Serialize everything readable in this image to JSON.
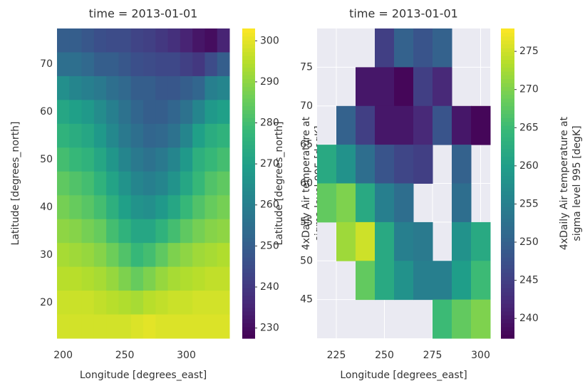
{
  "chart_data": [
    {
      "type": "heatmap",
      "title": "time = 2013-01-01",
      "x_label": "Longitude [degrees_east]",
      "y_label": "Latitude [degrees_north]",
      "x": [
        200,
        210,
        220,
        230,
        240,
        250,
        260,
        270,
        280,
        290,
        300,
        310,
        320,
        330
      ],
      "y": [
        75,
        70,
        65,
        60,
        55,
        50,
        45,
        40,
        35,
        30,
        25,
        20,
        15
      ],
      "values": [
        [
          250,
          250,
          248,
          246,
          245,
          245,
          243,
          242,
          240,
          238,
          235,
          232,
          230,
          235
        ],
        [
          255,
          255,
          253,
          250,
          250,
          248,
          246,
          245,
          244,
          244,
          242,
          240,
          245,
          250
        ],
        [
          265,
          262,
          260,
          258,
          255,
          253,
          250,
          250,
          248,
          248,
          250,
          252,
          260,
          262
        ],
        [
          272,
          270,
          268,
          264,
          260,
          256,
          252,
          250,
          250,
          252,
          256,
          262,
          268,
          270
        ],
        [
          276,
          274,
          272,
          268,
          263,
          258,
          255,
          252,
          253,
          256,
          262,
          270,
          274,
          276
        ],
        [
          280,
          278,
          276,
          272,
          267,
          262,
          258,
          256,
          258,
          262,
          268,
          275,
          278,
          280
        ],
        [
          284,
          282,
          280,
          276,
          271,
          266,
          262,
          260,
          262,
          266,
          272,
          278,
          282,
          284
        ],
        [
          287,
          285,
          283,
          280,
          275,
          270,
          266,
          265,
          268,
          272,
          278,
          282,
          285,
          287
        ],
        [
          290,
          289,
          287,
          285,
          280,
          276,
          272,
          272,
          276,
          280,
          284,
          287,
          289,
          290
        ],
        [
          293,
          292,
          291,
          289,
          286,
          282,
          278,
          280,
          284,
          288,
          290,
          292,
          293,
          294
        ],
        [
          295,
          295,
          294,
          293,
          291,
          288,
          285,
          288,
          291,
          293,
          294,
          295,
          296,
          296
        ],
        [
          297,
          297,
          297,
          296,
          295,
          294,
          293,
          295,
          296,
          297,
          297,
          298,
          298,
          298
        ],
        [
          298,
          298,
          298,
          298,
          298,
          298,
          299,
          300,
          299,
          299,
          299,
          299,
          299,
          299
        ]
      ],
      "xlim": [
        195,
        335
      ],
      "ylim": [
        12.5,
        77.5
      ],
      "xticks": [
        200,
        250,
        300
      ],
      "yticks": [
        20,
        30,
        40,
        50,
        60,
        70
      ],
      "grid": true,
      "colormap": "viridis",
      "colorbar": {
        "label": [
          "4xDaily Air temperature at",
          "sigma level 995 [degK]"
        ],
        "lim": [
          227.5,
          303
        ],
        "ticks": [
          230,
          240,
          250,
          260,
          270,
          280,
          290,
          300
        ]
      }
    },
    {
      "type": "heatmap",
      "title": "time = 2013-01-01",
      "x_label": "Longitude [degrees_east]",
      "y_label": "Latitude [degrees_north]",
      "x": [
        220,
        230,
        240,
        250,
        260,
        270,
        280,
        290,
        300
      ],
      "y": [
        77.5,
        72.5,
        67.5,
        62.5,
        57.5,
        52.5,
        47.5,
        42.5
      ],
      "values": [
        [
          null,
          null,
          null,
          245,
          250,
          248,
          250,
          null,
          null
        ],
        [
          null,
          null,
          240,
          240,
          238,
          245,
          242,
          null,
          null
        ],
        [
          null,
          250,
          245,
          240,
          240,
          242,
          248,
          240,
          238
        ],
        [
          262,
          258,
          252,
          248,
          246,
          245,
          null,
          250,
          null
        ],
        [
          268,
          270,
          262,
          255,
          252,
          null,
          null,
          252,
          null
        ],
        [
          null,
          272,
          275,
          262,
          255,
          254,
          null,
          258,
          262
        ],
        [
          null,
          null,
          268,
          262,
          258,
          255,
          255,
          260,
          265
        ],
        [
          null,
          null,
          null,
          null,
          null,
          null,
          265,
          268,
          270
        ]
      ],
      "xlim": [
        215,
        305
      ],
      "ylim": [
        40,
        80
      ],
      "xticks": [
        225,
        250,
        275,
        300
      ],
      "yticks": [
        45,
        50,
        55,
        60,
        65,
        70,
        75
      ],
      "grid": true,
      "colormap": "viridis",
      "colorbar": {
        "label": [
          "4xDaily Air temperature at",
          "sigma level 995 [degK]"
        ],
        "lim": [
          237.4,
          278
        ],
        "ticks": [
          240,
          245,
          250,
          255,
          260,
          265,
          270,
          275
        ]
      }
    }
  ]
}
